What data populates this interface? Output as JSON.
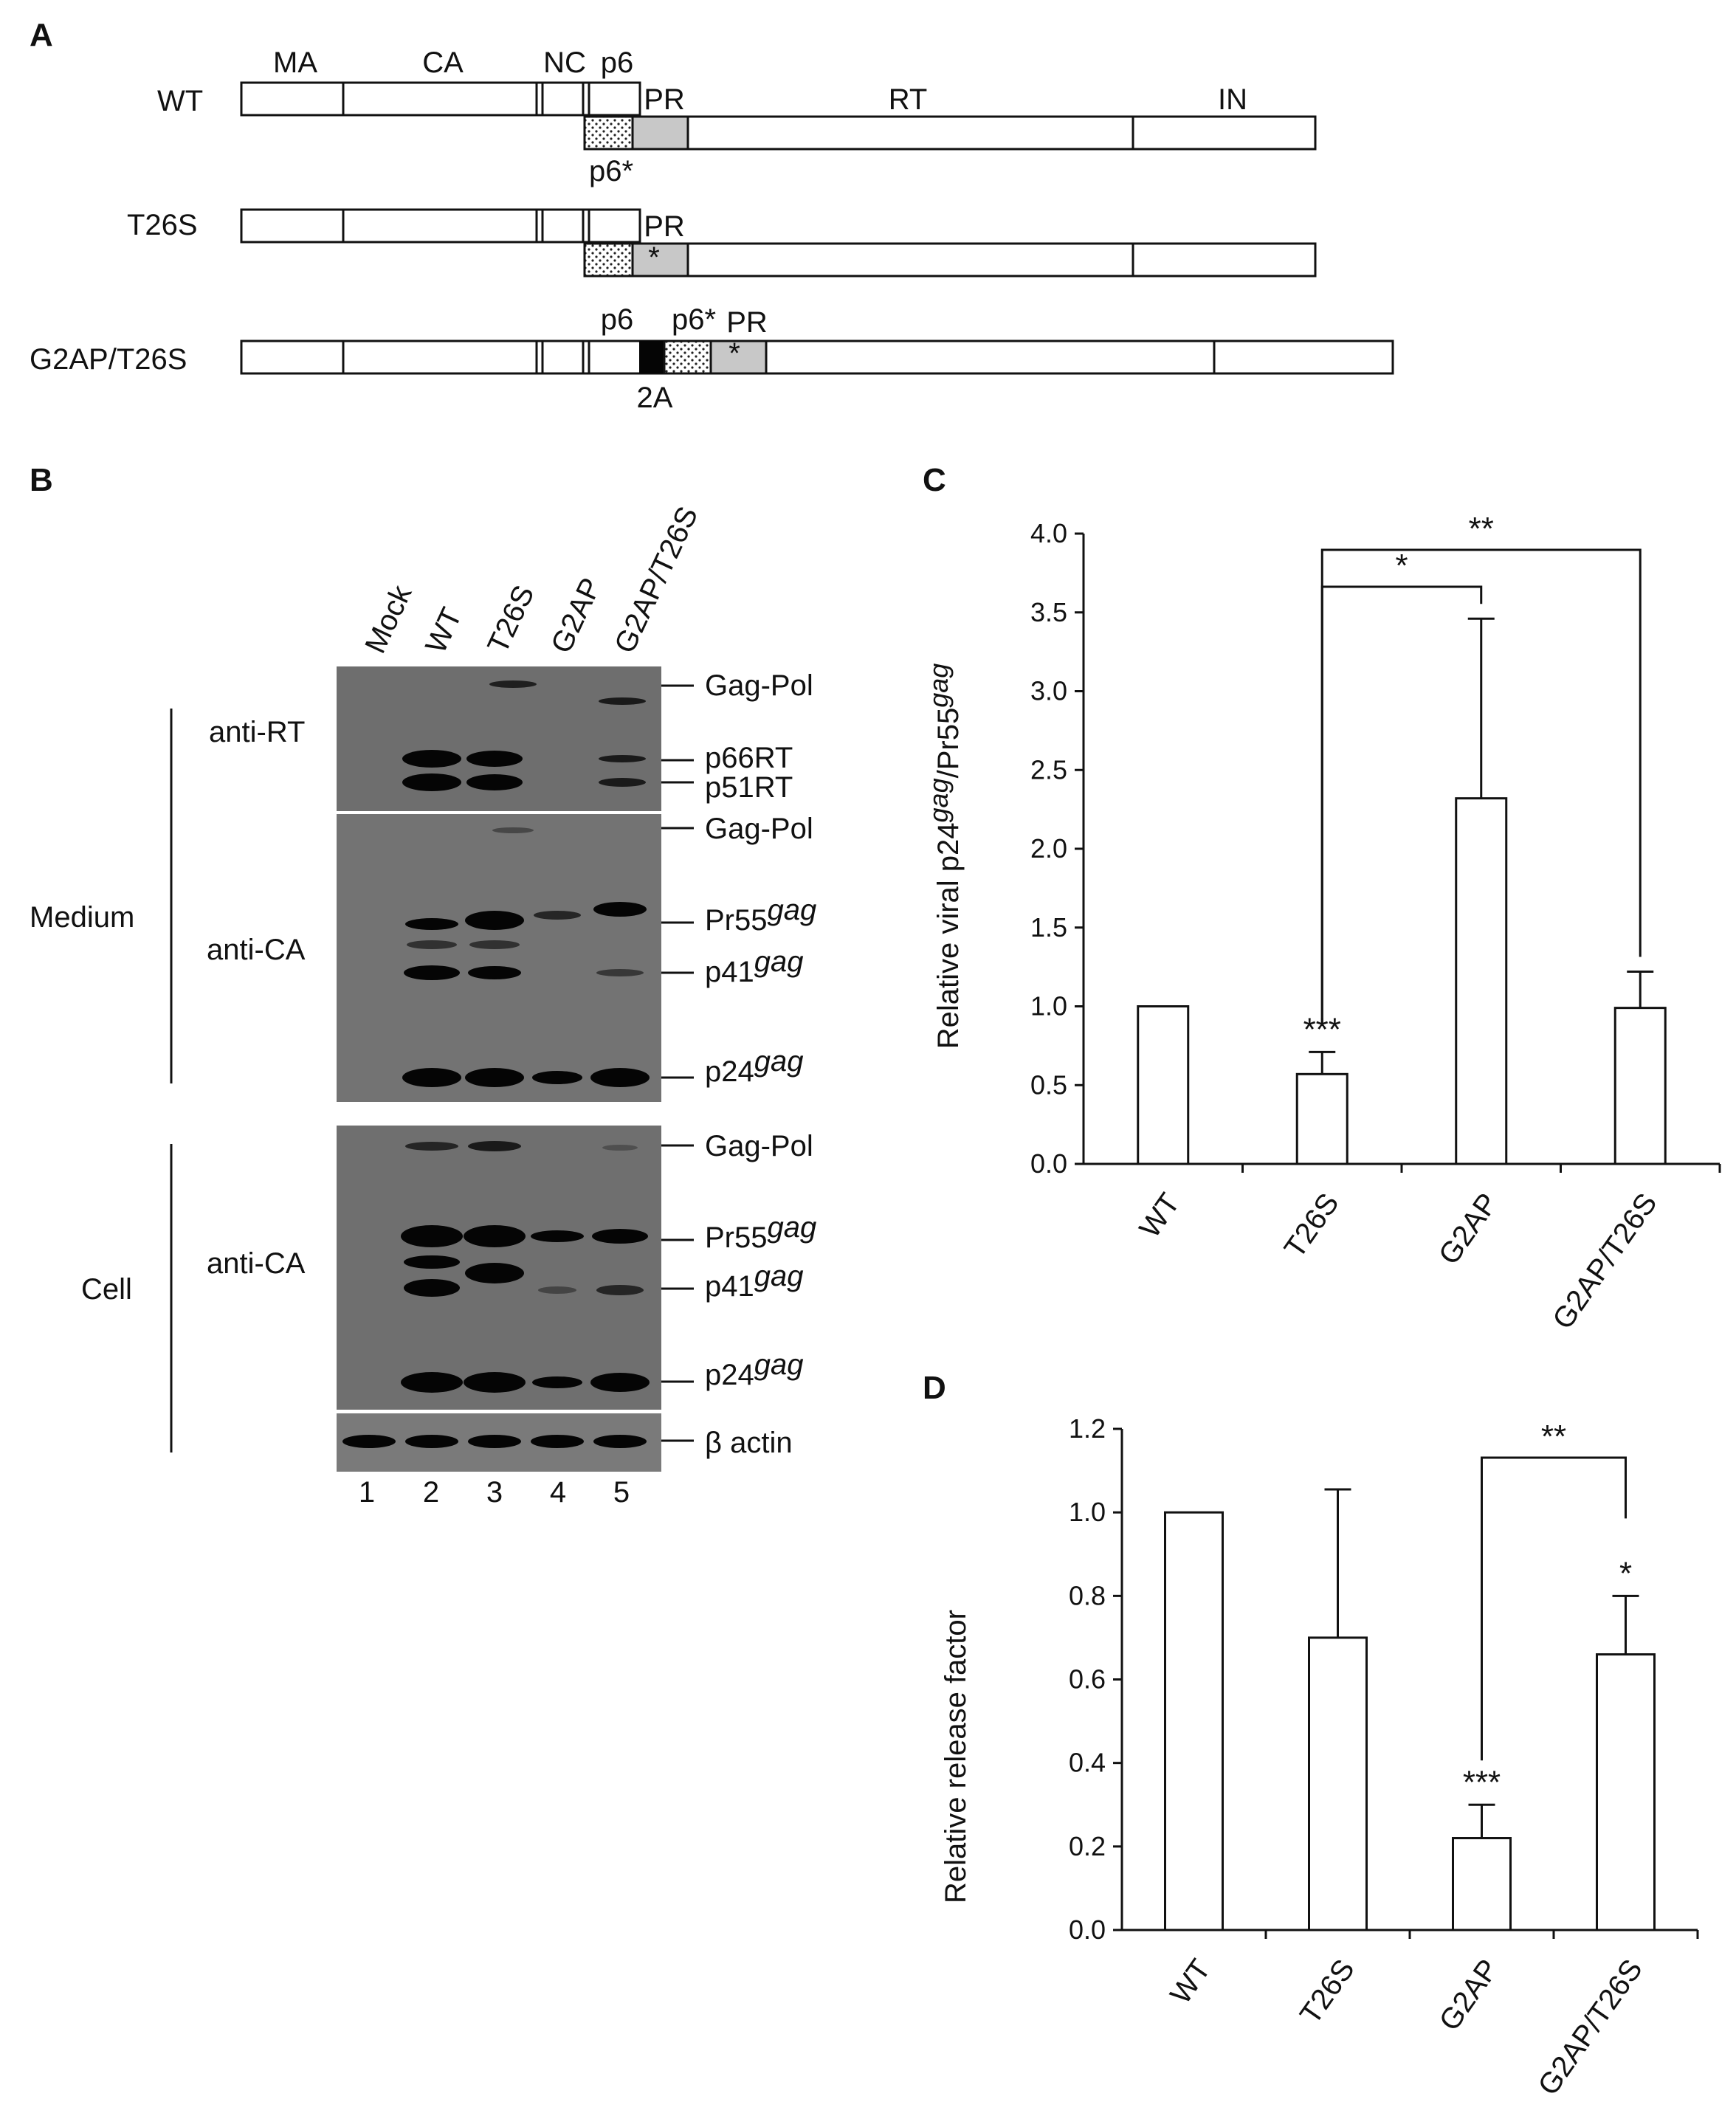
{
  "panels": {
    "A": "A",
    "B": "B",
    "C": "C",
    "D": "D"
  },
  "schematic": {
    "constructs": [
      {
        "name": "WT",
        "domains": [
          "MA",
          "CA",
          "NC",
          "p6"
        ],
        "labels": {
          "pr": "PR",
          "rt": "RT",
          "in": "IN",
          "p6star": "p6*"
        }
      },
      {
        "name": "T26S",
        "labels": {
          "pr": "PR",
          "star": "*"
        }
      },
      {
        "name": "G2AP/T26S",
        "labels": {
          "p6": "p6",
          "p6star": "p6*",
          "pr": "PR",
          "star": "*",
          "twoA": "2A"
        }
      }
    ]
  },
  "blot": {
    "lanes": [
      "Mock",
      "WT",
      "T26S",
      "G2AP",
      "G2AP/T26S"
    ],
    "lane_numbers": [
      "1",
      "2",
      "3",
      "4",
      "5"
    ],
    "groups": {
      "medium": "Medium",
      "cell": "Cell"
    },
    "antibodies": {
      "rt": "anti-RT",
      "ca_medium": "anti-CA",
      "ca_cell": "anti-CA"
    },
    "markers": {
      "rt": [
        "Gag-Pol",
        "p66RT",
        "p51RT"
      ],
      "ca_medium": [
        "Gag-Pol",
        "Pr55",
        "p41",
        "p24"
      ],
      "ca_cell": [
        "Gag-Pol",
        "Pr55",
        "p41",
        "p24"
      ],
      "actin": "β actin"
    },
    "gag_superscript": "gag"
  },
  "chart_data": [
    {
      "panel": "C",
      "type": "bar",
      "categories": [
        "WT",
        "T26S",
        "G2AP",
        "G2AP/T26S"
      ],
      "values": [
        1.0,
        0.57,
        2.32,
        0.99
      ],
      "errors": [
        0,
        0.14,
        1.14,
        0.23
      ],
      "ylabel_parts": [
        "Relative viral p24",
        "gag",
        "/Pr55",
        "gag"
      ],
      "ylim": [
        0,
        4.0
      ],
      "yticks": [
        "0.0",
        "0.5",
        "1.0",
        "1.5",
        "2.0",
        "2.5",
        "3.0",
        "3.5",
        "4.0"
      ],
      "annotations": {
        "bar_stars": [
          "",
          "***",
          "",
          ""
        ],
        "brackets": [
          {
            "from": 1,
            "to": 2,
            "label": "*"
          },
          {
            "from": 1,
            "to": 3,
            "label": "**"
          }
        ]
      }
    },
    {
      "panel": "D",
      "type": "bar",
      "categories": [
        "WT",
        "T26S",
        "G2AP",
        "G2AP/T26S"
      ],
      "values": [
        1.0,
        0.7,
        0.22,
        0.66
      ],
      "errors": [
        0,
        0.355,
        0.08,
        0.14
      ],
      "ylabel": "Relative release factor",
      "ylim": [
        0,
        1.2
      ],
      "yticks": [
        "0.0",
        "0.2",
        "0.4",
        "0.6",
        "0.8",
        "1.0",
        "1.2"
      ],
      "annotations": {
        "bar_stars": [
          "",
          "",
          "***",
          "*"
        ],
        "brackets": [
          {
            "from": 2,
            "to": 3,
            "label": "**"
          }
        ]
      }
    }
  ]
}
